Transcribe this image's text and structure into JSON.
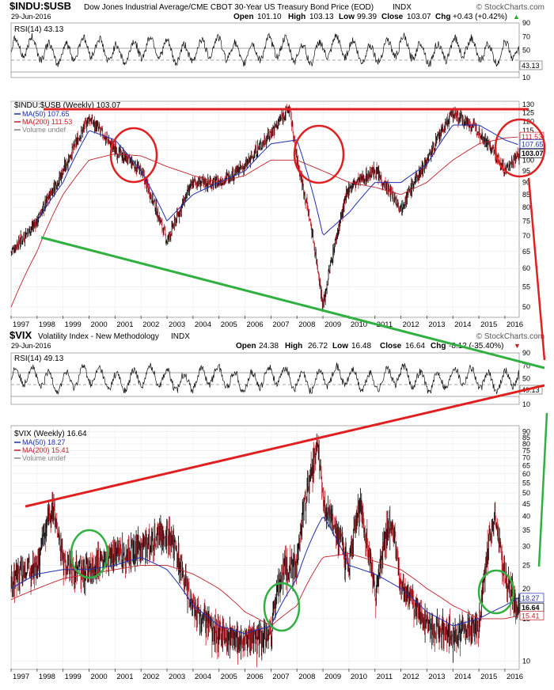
{
  "top": {
    "symbol": "$INDU:$USB",
    "name": "Dow Jones Industrial Average/CME CBOT 30-Year US Treasury Bond Price (EOD)",
    "exchange": "INDX",
    "credit": "© StockCharts.com",
    "date": "29-Jun-2016",
    "ohlc": {
      "open_label": "Open",
      "open": "101.10",
      "high_label": "High",
      "high": "103.13",
      "low_label": "Low",
      "low": "99.39",
      "close_label": "Close",
      "close": "103.07",
      "chg_label": "Chg",
      "chg": "+0.43 (+0.42%)"
    },
    "chg_arrow": "▲",
    "rsi_label": "RSI(14) 43.13",
    "rsi_ticks": [
      "90",
      "70",
      "50",
      "30",
      "10"
    ],
    "rsi_value_tag": "43.13",
    "main_label": "$INDU:$USB (Weekly) 103.07",
    "legend": [
      {
        "text": "MA(50) 107.65",
        "color": "#1f2fb0"
      },
      {
        "text": "MA(200) 111.53",
        "color": "#c0202a"
      },
      {
        "text": "Volume undef",
        "color": "#888888"
      }
    ],
    "price_ticks": [
      "130",
      "125",
      "120",
      "115",
      "110",
      "105",
      "100",
      "95",
      "90",
      "85",
      "80",
      "75",
      "70",
      "65",
      "60",
      "55",
      "50"
    ],
    "tags": {
      "ma200": "111.53",
      "ma50": "107.65",
      "close": "103.07",
      "hundred": "100"
    }
  },
  "bottom": {
    "symbol": "$VIX",
    "name": "Volatility Index - New Methodology",
    "exchange": "INDX",
    "credit": "© StockCharts.com",
    "date": "29-Jun-2016",
    "ohlc": {
      "open_label": "Open",
      "open": "24.38",
      "high_label": "High",
      "high": "26.72",
      "low_label": "Low",
      "low": "16.48",
      "close_label": "Close",
      "close": "16.64",
      "chg_label": "Chg",
      "chg": "-8.12 (-35.40%)"
    },
    "chg_arrow": "▼",
    "rsi_label": "RSI(14) 49.13",
    "rsi_ticks": [
      "90",
      "70",
      "50",
      "30",
      "10"
    ],
    "rsi_value_tag": "49.13",
    "main_label": "$VIX (Weekly) 16.64",
    "legend": [
      {
        "text": "MA(50) 18.27",
        "color": "#1f2fb0"
      },
      {
        "text": "MA(200) 15.41",
        "color": "#c0202a"
      },
      {
        "text": "Volume undef",
        "color": "#888888"
      }
    ],
    "price_ticks": [
      "90",
      "85",
      "80",
      "75",
      "70",
      "65",
      "60",
      "55",
      "50",
      "45",
      "40",
      "35",
      "30",
      "25",
      "20",
      "15",
      "10"
    ],
    "tags": {
      "ma50": "18.27",
      "close": "16.64",
      "ma200": "15.41"
    }
  },
  "years": [
    "1997",
    "1998",
    "1999",
    "2000",
    "2001",
    "2002",
    "2003",
    "2004",
    "2005",
    "2006",
    "2007",
    "2008",
    "2009",
    "2010",
    "2011",
    "2012",
    "2013",
    "2014",
    "2015",
    "2016"
  ],
  "colors": {
    "up": "#000000",
    "down": "#c0202a",
    "ma50": "#1f2fb0",
    "ma200": "#c0202a",
    "red_line": "#e02020",
    "green_line": "#30b040",
    "grid": "#dddddd"
  },
  "chart_data": [
    {
      "type": "line",
      "title": "$INDU:$USB (Weekly)",
      "x_range": [
        "1997",
        "2016"
      ],
      "ylim": [
        50,
        130
      ],
      "scale": "log",
      "series": [
        {
          "name": "$INDU:$USB",
          "x": [
            "1997.0",
            "1998.0",
            "1999.0",
            "2000.0",
            "2001.0",
            "2002.0",
            "2003.0",
            "2004.0",
            "2005.0",
            "2006.0",
            "2007.0",
            "2007.7",
            "2008.0",
            "2009.0",
            "2010.0",
            "2011.0",
            "2012.0",
            "2013.0",
            "2014.0",
            "2015.0",
            "2016.0",
            "2016.5"
          ],
          "values": [
            65,
            75,
            95,
            122,
            105,
            95,
            68,
            90,
            90,
            97,
            114,
            128,
            100,
            50,
            88,
            95,
            80,
            100,
            125,
            115,
            95,
            103.07
          ]
        },
        {
          "name": "MA(50)",
          "x": [
            "1998.0",
            "1999.0",
            "2000.0",
            "2001.0",
            "2002.0",
            "2003.0",
            "2004.0",
            "2005.0",
            "2006.0",
            "2007.0",
            "2008.0",
            "2009.0",
            "2010.0",
            "2011.0",
            "2012.0",
            "2013.0",
            "2014.0",
            "2015.0",
            "2016.0",
            "2016.5"
          ],
          "values": [
            75,
            90,
            115,
            110,
            95,
            75,
            85,
            90,
            95,
            108,
            110,
            70,
            78,
            90,
            90,
            98,
            118,
            118,
            110,
            107.65
          ]
        },
        {
          "name": "MA(200)",
          "x": [
            "1997.0",
            "1998.0",
            "1999.0",
            "2000.0",
            "2001.0",
            "2002.0",
            "2003.0",
            "2004.0",
            "2005.0",
            "2006.0",
            "2007.0",
            "2008.0",
            "2009.0",
            "2010.0",
            "2011.0",
            "2012.0",
            "2013.0",
            "2014.0",
            "2015.0",
            "2016.0",
            "2016.5"
          ],
          "values": [
            50,
            65,
            85,
            100,
            103,
            102,
            97,
            93,
            90,
            93,
            100,
            100,
            95,
            90,
            88,
            85,
            90,
            100,
            108,
            111,
            111.53
          ]
        }
      ],
      "annotations": {
        "rsi_last": 43.13
      }
    },
    {
      "type": "line",
      "title": "$VIX (Weekly)",
      "x_range": [
        "1997",
        "2016"
      ],
      "ylim": [
        10,
        90
      ],
      "scale": "log",
      "series": [
        {
          "name": "$VIX",
          "x": [
            "1997.0",
            "1998.0",
            "1998.6",
            "1999.0",
            "2000.0",
            "2001.0",
            "2002.0",
            "2003.0",
            "2004.0",
            "2005.0",
            "2006.0",
            "2007.0",
            "2007.5",
            "2008.0",
            "2008.8",
            "2009.0",
            "2010.0",
            "2010.4",
            "2011.0",
            "2011.6",
            "2012.0",
            "2013.0",
            "2014.0",
            "2015.0",
            "2015.6",
            "2016.0",
            "2016.5"
          ],
          "values": [
            22,
            25,
            45,
            25,
            24,
            28,
            30,
            35,
            16,
            13,
            12,
            13,
            25,
            25,
            80,
            45,
            25,
            45,
            18,
            40,
            20,
            14,
            13,
            14,
            40,
            22,
            16.64
          ]
        },
        {
          "name": "MA(50)",
          "x": [
            "1997.0",
            "1998.0",
            "1999.0",
            "2000.0",
            "2001.0",
            "2002.0",
            "2003.0",
            "2004.0",
            "2005.0",
            "2006.0",
            "2007.0",
            "2008.0",
            "2009.0",
            "2010.0",
            "2011.0",
            "2012.0",
            "2013.0",
            "2014.0",
            "2015.0",
            "2016.0",
            "2016.5"
          ],
          "values": [
            20,
            23,
            24,
            24,
            25,
            27,
            24,
            17,
            14,
            13,
            14,
            22,
            40,
            25,
            23,
            20,
            16,
            14,
            15,
            17,
            18.27
          ]
        },
        {
          "name": "MA(200)",
          "x": [
            "1997.0",
            "1998.0",
            "1999.0",
            "2000.0",
            "2001.0",
            "2002.0",
            "2003.0",
            "2004.0",
            "2005.0",
            "2006.0",
            "2007.0",
            "2008.0",
            "2009.0",
            "2010.0",
            "2011.0",
            "2012.0",
            "2013.0",
            "2014.0",
            "2015.0",
            "2016.0",
            "2016.5"
          ],
          "values": [
            18,
            20,
            22,
            23,
            24,
            25,
            25,
            23,
            20,
            16,
            14,
            17,
            27,
            28,
            26,
            24,
            20,
            17,
            15,
            15,
            15.41
          ]
        }
      ],
      "annotations": {
        "rsi_last": 49.13
      }
    }
  ]
}
